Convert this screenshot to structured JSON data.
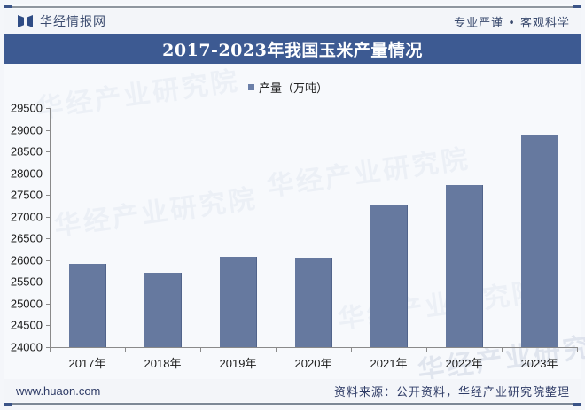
{
  "header": {
    "brand_name": "华经情报网",
    "slogan": "专业严谨 • 客观科学",
    "logo_icon": "bookmark-logo-icon"
  },
  "title": "2017-2023年我国玉米产量情况",
  "legend": {
    "label": "产量（万吨）",
    "color": "#6b7fa8"
  },
  "watermark": "华经产业研究院",
  "footer": {
    "url": "www.huaon.com",
    "source": "资料来源：公开资料，华经产业研究院整理"
  },
  "colors": {
    "title_band": "#3d5a92",
    "bar": "#66799f",
    "text_dark": "#2e3b66"
  },
  "chart_data": {
    "type": "bar",
    "title": "2017-2023年我国玉米产量情况",
    "categories": [
      "2017年",
      "2018年",
      "2019年",
      "2020年",
      "2021年",
      "2022年",
      "2023年"
    ],
    "series": [
      {
        "name": "产量（万吨）",
        "values": [
          25907,
          25717,
          26078,
          26067,
          27255,
          27720,
          28884
        ]
      }
    ],
    "xlabel": "",
    "ylabel": "",
    "ylim": [
      24000,
      29500
    ],
    "yticks": [
      24000,
      24500,
      25000,
      25500,
      26000,
      26500,
      27000,
      27500,
      28000,
      28500,
      29000,
      29500
    ],
    "ytick_labels": [
      "24000",
      "24500",
      "25000",
      "25500",
      "26000",
      "26500",
      "27000",
      "27500",
      "28000",
      "28500",
      "29000",
      "29500"
    ],
    "grid": false,
    "legend_position": "top-center"
  }
}
